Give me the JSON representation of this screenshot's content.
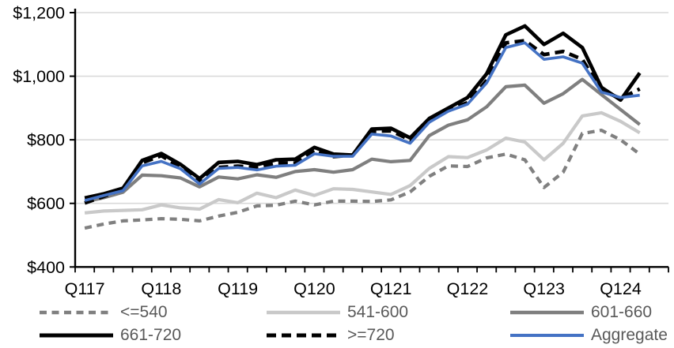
{
  "window": {
    "background": "#ffffff"
  },
  "chart_data": {
    "type": "line",
    "title": "",
    "xlabel": "",
    "ylabel": "",
    "ylim": [
      400,
      1200
    ],
    "y_tick_step": 200,
    "grid": "horizontal",
    "gridline_color": "#d9d9d9",
    "axis_color": "#000000",
    "legend_position": "bottom",
    "legend_text_color": "#595959",
    "y_ticks": [
      {
        "value": 400,
        "label": "$400"
      },
      {
        "value": 600,
        "label": "$600"
      },
      {
        "value": 800,
        "label": "$800"
      },
      {
        "value": 1000,
        "label": "$1,000"
      },
      {
        "value": 1200,
        "label": "$1,200"
      }
    ],
    "x_tick_labels": [
      "Q117",
      "Q118",
      "Q119",
      "Q120",
      "Q121",
      "Q122",
      "Q123",
      "Q124"
    ],
    "x_categories": [
      "Q117",
      "Q217",
      "Q317",
      "Q417",
      "Q118",
      "Q218",
      "Q318",
      "Q418",
      "Q119",
      "Q219",
      "Q319",
      "Q419",
      "Q120",
      "Q220",
      "Q320",
      "Q420",
      "Q121",
      "Q221",
      "Q321",
      "Q421",
      "Q122",
      "Q222",
      "Q322",
      "Q422",
      "Q123",
      "Q223",
      "Q323",
      "Q423",
      "Q124",
      "Q224"
    ],
    "series": [
      {
        "name": "<=540",
        "color": "#808080",
        "style": "dashed",
        "values": [
          522,
          535,
          545,
          548,
          552,
          550,
          545,
          560,
          572,
          592,
          594,
          607,
          595,
          607,
          607,
          606,
          611,
          636,
          685,
          718,
          716,
          743,
          755,
          737,
          650,
          698,
          820,
          830,
          800,
          755
        ]
      },
      {
        "name": "541-600",
        "color": "#c9c9c9",
        "style": "solid",
        "values": [
          570,
          576,
          578,
          580,
          595,
          586,
          582,
          612,
          602,
          632,
          618,
          642,
          625,
          646,
          644,
          636,
          628,
          656,
          710,
          747,
          744,
          768,
          805,
          793,
          737,
          789,
          875,
          885,
          858,
          822
        ]
      },
      {
        "name": "601-660",
        "color": "#7f7f7f",
        "style": "solid",
        "values": [
          605,
          618,
          635,
          689,
          687,
          680,
          652,
          683,
          677,
          690,
          682,
          700,
          706,
          698,
          706,
          739,
          731,
          735,
          813,
          846,
          863,
          904,
          967,
          972,
          915,
          945,
          990,
          942,
          895,
          848
        ]
      },
      {
        "name": "661-720",
        "color": "#000000",
        "style": "solid",
        "values": [
          617,
          630,
          648,
          735,
          757,
          723,
          678,
          729,
          732,
          722,
          737,
          739,
          776,
          755,
          752,
          834,
          836,
          806,
          867,
          900,
          933,
          1008,
          1130,
          1158,
          1100,
          1135,
          1090,
          965,
          925,
          1010
        ]
      },
      {
        "name": ">=720",
        "color": "#000000",
        "style": "dashed",
        "values": [
          601,
          622,
          645,
          728,
          750,
          714,
          665,
          713,
          717,
          713,
          727,
          727,
          768,
          747,
          752,
          827,
          828,
          800,
          860,
          895,
          917,
          987,
          1105,
          1112,
          1068,
          1078,
          1053,
          955,
          930,
          960
        ]
      },
      {
        "name": "Aggregate",
        "color": "#4472c4",
        "style": "solid",
        "values": [
          609,
          625,
          640,
          718,
          732,
          709,
          661,
          710,
          713,
          705,
          717,
          720,
          756,
          748,
          748,
          818,
          812,
          789,
          855,
          890,
          912,
          979,
          1090,
          1105,
          1053,
          1061,
          1041,
          950,
          933,
          940
        ]
      }
    ]
  }
}
